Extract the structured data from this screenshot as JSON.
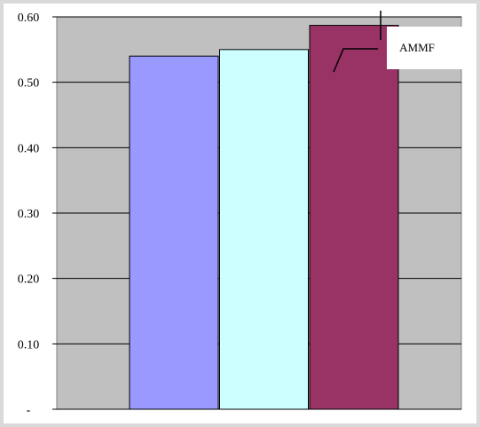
{
  "chart_data": {
    "type": "bar",
    "title": "",
    "xlabel": "",
    "ylabel": "",
    "ylim": [
      0,
      0.6
    ],
    "grid": true,
    "y_ticks": [
      {
        "value": 0.0,
        "label": "-"
      },
      {
        "value": 0.1,
        "label": "0.10"
      },
      {
        "value": 0.2,
        "label": "0.20"
      },
      {
        "value": 0.3,
        "label": "0.30"
      },
      {
        "value": 0.4,
        "label": "0.40"
      },
      {
        "value": 0.5,
        "label": "0.50"
      },
      {
        "value": 0.6,
        "label": "0.60"
      }
    ],
    "categories": [
      ""
    ],
    "series": [
      {
        "values": [
          0.54
        ],
        "color": "#9999ff"
      },
      {
        "values": [
          0.55
        ],
        "color": "#ccffff"
      },
      {
        "values": [
          0.587
        ],
        "color": "#993366",
        "error": 0.045
      }
    ],
    "annotation": {
      "text": "AMMF"
    },
    "plot_background": "#c0c0c0",
    "gridline_color": "#000000"
  }
}
